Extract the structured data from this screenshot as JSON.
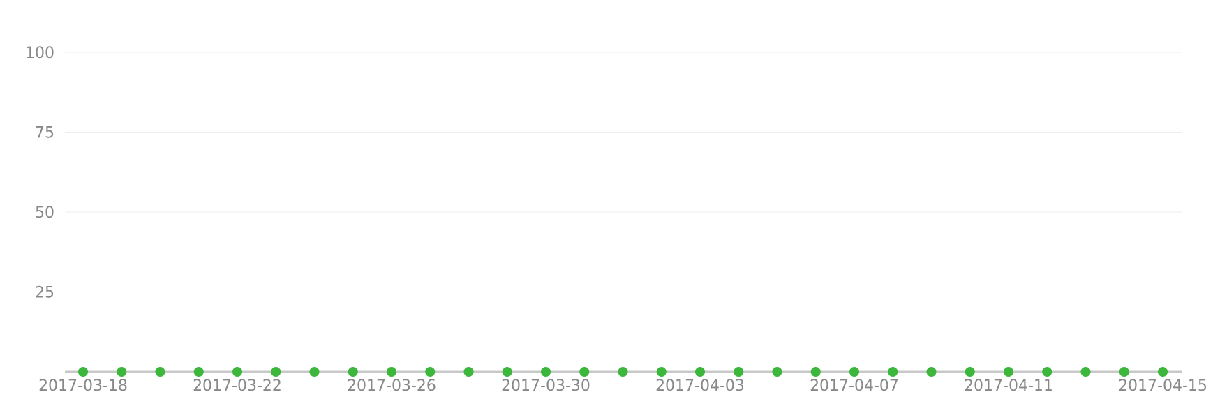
{
  "chart_data": {
    "type": "line",
    "title": "",
    "xlabel": "",
    "ylabel": "",
    "ylim": [
      0,
      100
    ],
    "y_ticks": [
      25,
      50,
      75,
      100
    ],
    "x_tick_labels": [
      "2017-03-18",
      "2017-03-22",
      "2017-03-26",
      "2017-03-30",
      "2017-04-03",
      "2017-04-07",
      "2017-04-11",
      "2017-04-15"
    ],
    "x": [
      "2017-03-18",
      "2017-03-19",
      "2017-03-20",
      "2017-03-21",
      "2017-03-22",
      "2017-03-23",
      "2017-03-24",
      "2017-03-25",
      "2017-03-26",
      "2017-03-27",
      "2017-03-28",
      "2017-03-29",
      "2017-03-30",
      "2017-03-31",
      "2017-04-01",
      "2017-04-02",
      "2017-04-03",
      "2017-04-04",
      "2017-04-05",
      "2017-04-06",
      "2017-04-07",
      "2017-04-08",
      "2017-04-09",
      "2017-04-10",
      "2017-04-11",
      "2017-04-12",
      "2017-04-13",
      "2017-04-14",
      "2017-04-15"
    ],
    "series": [
      {
        "values": [
          0,
          0,
          0,
          0,
          0,
          0,
          0,
          0,
          0,
          0,
          0,
          0,
          0,
          0,
          0,
          0,
          0,
          0,
          0,
          0,
          0,
          0,
          0,
          0,
          0,
          0,
          0,
          0,
          0
        ],
        "color": "#3cb73c",
        "line_color": "#c8c8c8"
      }
    ],
    "grid": true,
    "legend": "none"
  }
}
